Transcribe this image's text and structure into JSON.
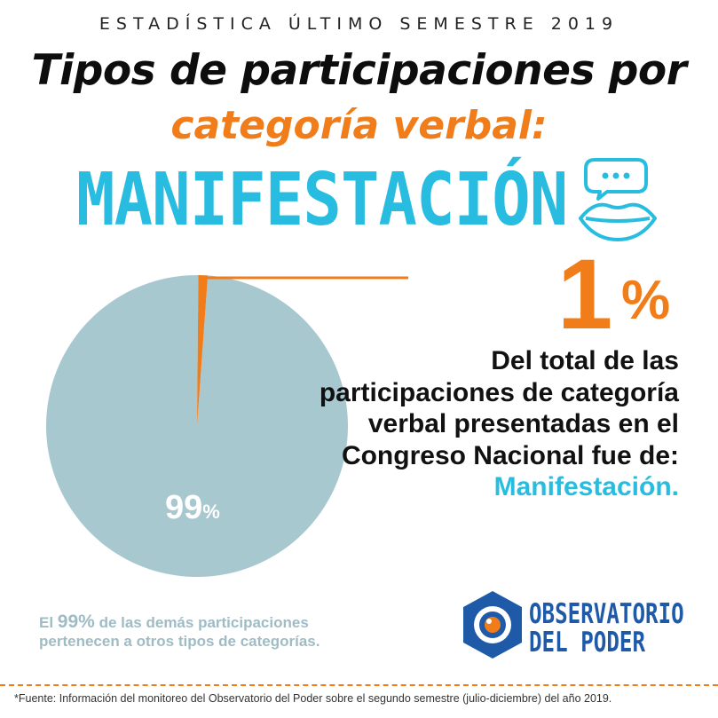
{
  "header": {
    "kicker": "ESTADÍSTICA ÚLTIMO SEMESTRE 2019",
    "title_line1": "Tipos de participaciones por",
    "title_line2": "categoría verbal:",
    "category": "MANIFESTACIÓN"
  },
  "highlight": {
    "value": "1",
    "symbol": "%",
    "desc_text": "Del total de las participaciones de categoría verbal presentadas en el Congreso Nacional fue de:",
    "desc_highlight": "Manifestación."
  },
  "pie_label": {
    "value": "99",
    "symbol": "%"
  },
  "note": {
    "prefix": "El",
    "value": "99%",
    "line1_rest": "de las demás participaciones",
    "line2": "pertenecen a otros tipos de categorías."
  },
  "brand": {
    "line1": "OBSERVATORIO",
    "line2": "DEL PODER"
  },
  "source": "*Fuente: Información del monitoreo del Observatorio del Poder sobre el segundo semestre (julio-diciembre) del año 2019.",
  "colors": {
    "accent_orange": "#f07d1a",
    "accent_cyan": "#28bde0",
    "pie_main": "#a8c8cf",
    "brand_blue": "#1f5aa8"
  },
  "icons": [
    "speech-bubble-icon",
    "lips-icon",
    "observatorio-logo-icon"
  ],
  "chart_data": {
    "type": "pie",
    "slices": [
      {
        "label": "Manifestación",
        "value": 1,
        "color": "#f07d1a"
      },
      {
        "label": "Otros",
        "value": 99,
        "color": "#a8c8cf"
      }
    ]
  }
}
